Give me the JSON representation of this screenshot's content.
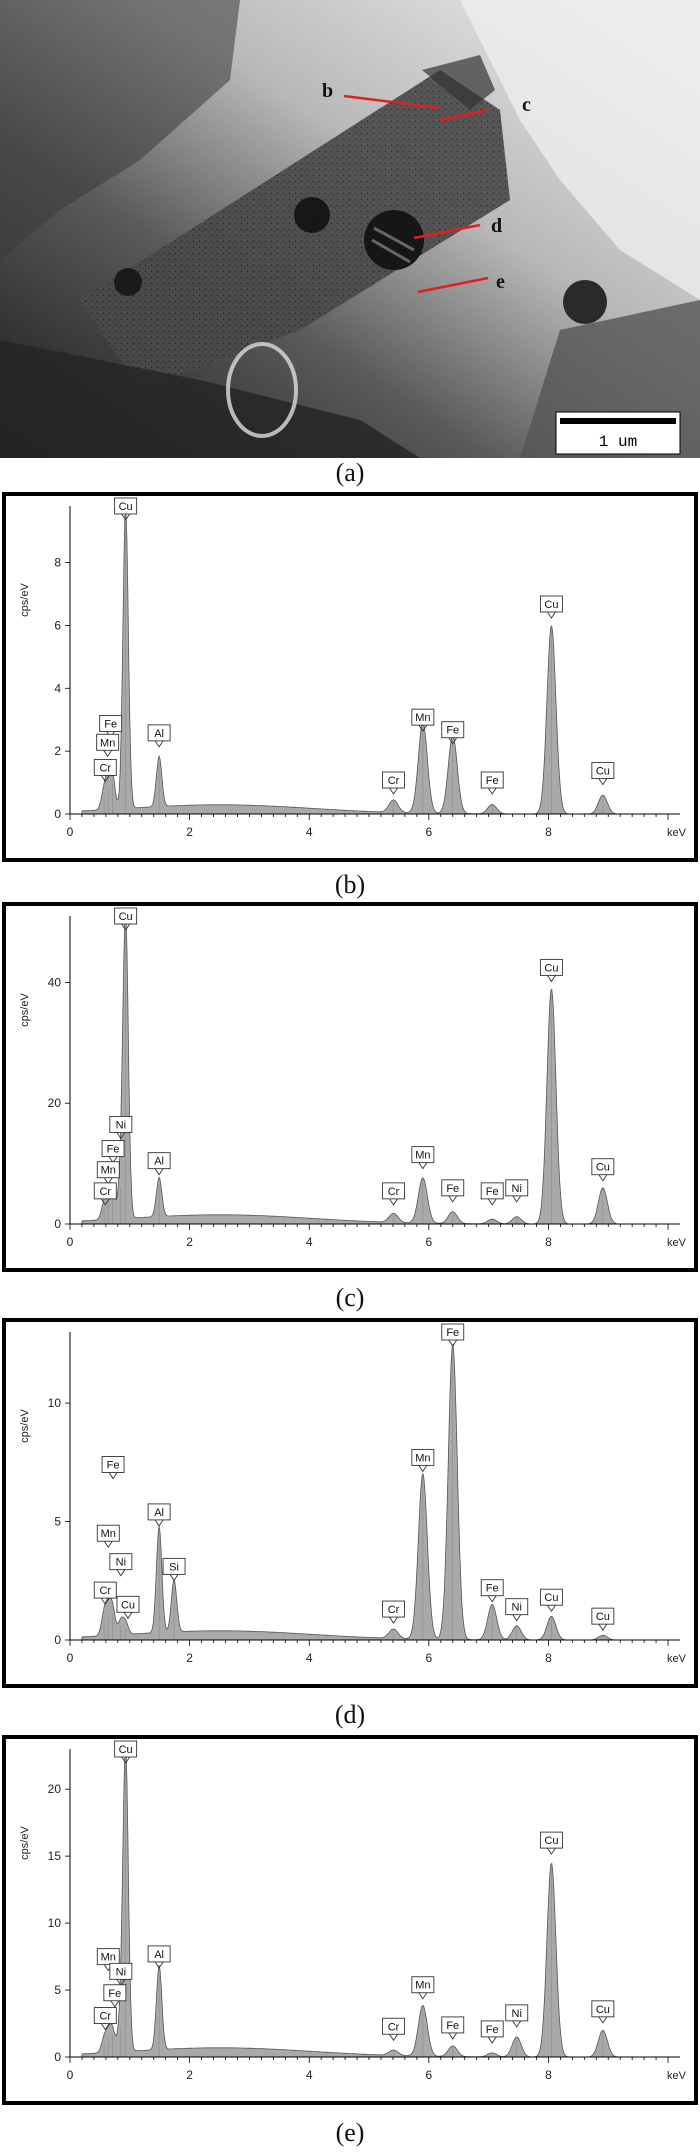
{
  "micrograph": {
    "point_labels": [
      "b",
      "c",
      "d",
      "e"
    ],
    "scale_bar": "1 um",
    "caption": "(a)"
  },
  "chart_data": [
    {
      "type": "area",
      "panel": "(b)",
      "ylabel": "cps/eV",
      "xlabel": "keV",
      "xlim": [
        0,
        10.2
      ],
      "ylim": [
        0,
        9.8
      ],
      "xticks": [
        0,
        2,
        4,
        6,
        8
      ],
      "yticks": [
        0,
        2,
        4,
        6,
        8
      ],
      "grid": false,
      "fill_color": "#a9a9a9",
      "peaks": [
        {
          "element": "Cr",
          "x": 0.57,
          "y": 0.6
        },
        {
          "element": "Mn",
          "x": 0.64,
          "y": 0.8
        },
        {
          "element": "Fe",
          "x": 0.71,
          "y": 1.0
        },
        {
          "element": "Cu",
          "x": 0.93,
          "y": 9.6
        },
        {
          "element": "Al",
          "x": 1.49,
          "y": 1.6
        },
        {
          "element": "Cr",
          "x": 5.41,
          "y": 0.4
        },
        {
          "element": "Mn",
          "x": 5.9,
          "y": 2.9
        },
        {
          "element": "Fe",
          "x": 6.4,
          "y": 2.5
        },
        {
          "element": "Fe",
          "x": 7.06,
          "y": 0.3
        },
        {
          "element": "Cu",
          "x": 8.05,
          "y": 6.0
        },
        {
          "element": "Cu",
          "x": 8.91,
          "y": 0.6
        }
      ],
      "labels": [
        {
          "text": "Cu",
          "x": 0.93,
          "y": 9.8
        },
        {
          "text": "Fe",
          "x": 0.68,
          "y": 2.5
        },
        {
          "text": "Mn",
          "x": 0.63,
          "y": 1.9
        },
        {
          "text": "Cr",
          "x": 0.59,
          "y": 1.1
        },
        {
          "text": "Al",
          "x": 1.49,
          "y": 2.2
        },
        {
          "text": "Mn",
          "x": 5.9,
          "y": 2.7
        },
        {
          "text": "Fe",
          "x": 6.4,
          "y": 2.3
        },
        {
          "text": "Cr",
          "x": 5.41,
          "y": 0.7
        },
        {
          "text": "Fe",
          "x": 7.06,
          "y": 0.7
        },
        {
          "text": "Cu",
          "x": 8.05,
          "y": 6.3
        },
        {
          "text": "Cu",
          "x": 8.91,
          "y": 1.0
        }
      ],
      "caption": "(b)"
    },
    {
      "type": "area",
      "panel": "(c)",
      "ylabel": "cps/eV",
      "xlabel": "keV",
      "xlim": [
        0,
        10.2
      ],
      "ylim": [
        0,
        51
      ],
      "xticks": [
        0,
        2,
        4,
        6,
        8
      ],
      "yticks": [
        0,
        20,
        40
      ],
      "grid": false,
      "fill_color": "#a9a9a9",
      "peaks": [
        {
          "element": "Cr",
          "x": 0.57,
          "y": 2.5
        },
        {
          "element": "Mn",
          "x": 0.64,
          "y": 3.5
        },
        {
          "element": "Fe",
          "x": 0.71,
          "y": 4.5
        },
        {
          "element": "Ni",
          "x": 0.85,
          "y": 6.0
        },
        {
          "element": "Cu",
          "x": 0.93,
          "y": 50
        },
        {
          "element": "Al",
          "x": 1.49,
          "y": 6.5
        },
        {
          "element": "Cr",
          "x": 5.41,
          "y": 1.5
        },
        {
          "element": "Mn",
          "x": 5.9,
          "y": 7.5
        },
        {
          "element": "Fe",
          "x": 6.4,
          "y": 2.0
        },
        {
          "element": "Fe",
          "x": 7.06,
          "y": 0.8
        },
        {
          "element": "Ni",
          "x": 7.47,
          "y": 1.2
        },
        {
          "element": "Cu",
          "x": 8.05,
          "y": 39
        },
        {
          "element": "Cu",
          "x": 8.91,
          "y": 6.0
        }
      ],
      "labels": [
        {
          "text": "Cu",
          "x": 0.93,
          "y": 51
        },
        {
          "text": "Ni",
          "x": 0.85,
          "y": 14.5
        },
        {
          "text": "Fe",
          "x": 0.72,
          "y": 10.5
        },
        {
          "text": "Mn",
          "x": 0.64,
          "y": 7.0
        },
        {
          "text": "Cr",
          "x": 0.59,
          "y": 3.5
        },
        {
          "text": "Al",
          "x": 1.49,
          "y": 8.5
        },
        {
          "text": "Mn",
          "x": 5.9,
          "y": 9.5
        },
        {
          "text": "Cr",
          "x": 5.41,
          "y": 3.5
        },
        {
          "text": "Fe",
          "x": 6.4,
          "y": 4.0
        },
        {
          "text": "Fe",
          "x": 7.06,
          "y": 3.5
        },
        {
          "text": "Ni",
          "x": 7.47,
          "y": 4.0
        },
        {
          "text": "Cu",
          "x": 8.05,
          "y": 40.5
        },
        {
          "text": "Cu",
          "x": 8.91,
          "y": 7.5
        }
      ],
      "caption": "(c)"
    },
    {
      "type": "area",
      "panel": "(d)",
      "ylabel": "cps/eV",
      "xlabel": "keV",
      "xlim": [
        0,
        10.2
      ],
      "ylim": [
        0,
        13
      ],
      "xticks": [
        0,
        2,
        4,
        6,
        8
      ],
      "yticks": [
        0,
        5,
        10
      ],
      "grid": false,
      "fill_color": "#a9a9a9",
      "peaks": [
        {
          "element": "Cr",
          "x": 0.57,
          "y": 0.9
        },
        {
          "element": "Mn",
          "x": 0.64,
          "y": 1.0
        },
        {
          "element": "Fe",
          "x": 0.71,
          "y": 1.1
        },
        {
          "element": "Ni",
          "x": 0.85,
          "y": 0.6
        },
        {
          "element": "Cu",
          "x": 0.93,
          "y": 0.5
        },
        {
          "element": "Al",
          "x": 1.49,
          "y": 4.5
        },
        {
          "element": "Si",
          "x": 1.74,
          "y": 2.2
        },
        {
          "element": "Cr",
          "x": 5.41,
          "y": 0.4
        },
        {
          "element": "Mn",
          "x": 5.9,
          "y": 7.0
        },
        {
          "element": "Fe",
          "x": 6.4,
          "y": 12.5
        },
        {
          "element": "Fe",
          "x": 7.06,
          "y": 1.5
        },
        {
          "element": "Ni",
          "x": 7.47,
          "y": 0.6
        },
        {
          "element": "Cu",
          "x": 8.05,
          "y": 1.0
        },
        {
          "element": "Cu",
          "x": 8.91,
          "y": 0.2
        }
      ],
      "labels": [
        {
          "text": "Fe",
          "x": 0.72,
          "y": 6.9
        },
        {
          "text": "Mn",
          "x": 0.64,
          "y": 4.0
        },
        {
          "text": "Ni",
          "x": 0.85,
          "y": 2.8
        },
        {
          "text": "Cr",
          "x": 0.59,
          "y": 1.6
        },
        {
          "text": "Cu",
          "x": 0.97,
          "y": 1.0
        },
        {
          "text": "Al",
          "x": 1.49,
          "y": 4.9
        },
        {
          "text": "Si",
          "x": 1.74,
          "y": 2.6
        },
        {
          "text": "Mn",
          "x": 5.9,
          "y": 7.2
        },
        {
          "text": "Fe",
          "x": 6.4,
          "y": 13.0
        },
        {
          "text": "Cr",
          "x": 5.41,
          "y": 0.8
        },
        {
          "text": "Fe",
          "x": 7.06,
          "y": 1.7
        },
        {
          "text": "Ni",
          "x": 7.47,
          "y": 0.9
        },
        {
          "text": "Cu",
          "x": 8.05,
          "y": 1.3
        },
        {
          "text": "Cu",
          "x": 8.91,
          "y": 0.5
        }
      ],
      "caption": "(d)"
    },
    {
      "type": "area",
      "panel": "(e)",
      "ylabel": "cps/eV",
      "xlabel": "keV",
      "xlim": [
        0,
        10.2
      ],
      "ylim": [
        0,
        23
      ],
      "xticks": [
        0,
        2,
        4,
        6,
        8
      ],
      "yticks": [
        0,
        5,
        10,
        15,
        20
      ],
      "grid": false,
      "fill_color": "#a9a9a9",
      "peaks": [
        {
          "element": "Cr",
          "x": 0.57,
          "y": 1.0
        },
        {
          "element": "Fe",
          "x": 0.71,
          "y": 1.6
        },
        {
          "element": "Ni",
          "x": 0.85,
          "y": 2.3
        },
        {
          "element": "Mn",
          "x": 0.64,
          "y": 1.2
        },
        {
          "element": "Cu",
          "x": 0.93,
          "y": 22.5
        },
        {
          "element": "Al",
          "x": 1.49,
          "y": 6.3
        },
        {
          "element": "Cr",
          "x": 5.41,
          "y": 0.4
        },
        {
          "element": "Mn",
          "x": 5.9,
          "y": 3.8
        },
        {
          "element": "Fe",
          "x": 6.4,
          "y": 0.8
        },
        {
          "element": "Fe",
          "x": 7.06,
          "y": 0.3
        },
        {
          "element": "Ni",
          "x": 7.47,
          "y": 1.5
        },
        {
          "element": "Cu",
          "x": 8.05,
          "y": 14.5
        },
        {
          "element": "Cu",
          "x": 8.91,
          "y": 2.0
        }
      ],
      "labels": [
        {
          "text": "Cu",
          "x": 0.93,
          "y": 23.0
        },
        {
          "text": "Mn",
          "x": 0.64,
          "y": 6.6
        },
        {
          "text": "Ni",
          "x": 0.85,
          "y": 5.5
        },
        {
          "text": "Fe",
          "x": 0.75,
          "y": 3.9
        },
        {
          "text": "Cr",
          "x": 0.59,
          "y": 2.2
        },
        {
          "text": "Al",
          "x": 1.49,
          "y": 6.8
        },
        {
          "text": "Mn",
          "x": 5.9,
          "y": 4.5
        },
        {
          "text": "Cr",
          "x": 5.41,
          "y": 1.4
        },
        {
          "text": "Fe",
          "x": 6.4,
          "y": 1.5
        },
        {
          "text": "Fe",
          "x": 7.06,
          "y": 1.2
        },
        {
          "text": "Ni",
          "x": 7.47,
          "y": 2.4
        },
        {
          "text": "Cu",
          "x": 8.05,
          "y": 15.3
        },
        {
          "text": "Cu",
          "x": 8.91,
          "y": 2.7
        }
      ],
      "caption": "(e)"
    }
  ]
}
